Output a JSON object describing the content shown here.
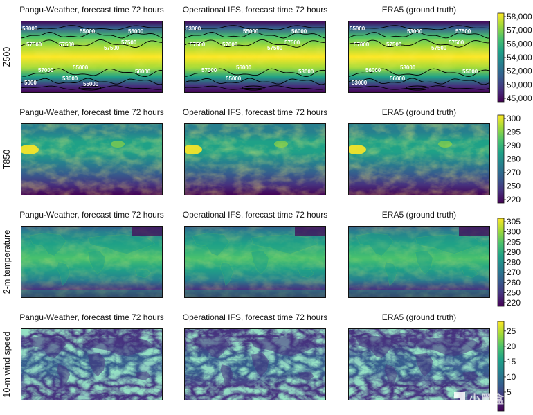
{
  "figure": {
    "columns": [
      "Pangu-Weather, forecast time 72 hours",
      "Operational IFS, forecast time 72 hours",
      "ERA5 (ground truth)"
    ],
    "rows": [
      "Z500",
      "T850",
      "2-m temperature",
      "10-m wind speed"
    ],
    "colormap": [
      "#440154",
      "#46327e",
      "#365c8d",
      "#277f8e",
      "#1fa187",
      "#4ac16d",
      "#a0da39",
      "#fde725"
    ],
    "watermark": "小黑盒"
  },
  "chart_data": [
    {
      "type": "heatmap",
      "variable": "Z500",
      "colorbar": {
        "ticks": [
          45000,
          50000,
          52000,
          54000,
          56000,
          57000,
          58000
        ],
        "range": [
          45000,
          58500
        ],
        "labels": [
          "45,000",
          "50,000",
          "52,000",
          "54,000",
          "56,000",
          "57,000",
          "58,000"
        ]
      },
      "contour_labels": {
        "Pangu-Weather, forecast time 72 hours": [
          "53000",
          "55000",
          "56000",
          "57500",
          "57500",
          "57500",
          "57500",
          "57000",
          "55000",
          "56000",
          "53000",
          "5000",
          "55000"
        ],
        "Operational IFS, forecast time 72 hours": [
          "53000",
          "55000",
          "56000",
          "57500",
          "57000",
          "57500",
          "57500",
          "57000",
          "56000",
          "53000",
          "55000"
        ],
        "ERA5 (ground truth)": [
          "55000",
          "53000",
          "57500",
          "57000",
          "57500",
          "57500",
          "57500",
          "56000",
          "53000",
          "55000",
          "56000",
          "53000"
        ]
      }
    },
    {
      "type": "heatmap",
      "variable": "T850",
      "colorbar": {
        "ticks": [
          220,
          250,
          270,
          280,
          290,
          295,
          300
        ],
        "range": [
          220,
          305
        ],
        "labels": [
          "220",
          "250",
          "270",
          "280",
          "290",
          "295",
          "300"
        ]
      }
    },
    {
      "type": "heatmap",
      "variable": "2-m temperature",
      "colorbar": {
        "ticks": [
          220,
          250,
          260,
          270,
          280,
          290,
          295,
          300,
          305
        ],
        "range": [
          220,
          310
        ],
        "labels": [
          "220",
          "250",
          "260",
          "270",
          "280",
          "290",
          "295",
          "300",
          "305"
        ]
      }
    },
    {
      "type": "heatmap",
      "variable": "10-m wind speed",
      "colorbar": {
        "ticks": [
          5,
          10,
          15,
          20,
          25
        ],
        "range": [
          0,
          27
        ],
        "labels": [
          "5",
          "10",
          "15",
          "20",
          "25"
        ]
      }
    }
  ]
}
